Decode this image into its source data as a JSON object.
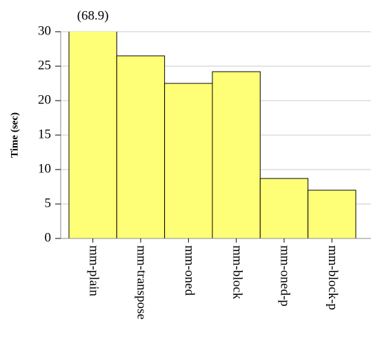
{
  "chart_data": {
    "type": "bar",
    "y_label": "Time (sec)",
    "categories": [
      "mm-plain",
      "mm-transpose",
      "mm-oned",
      "mm-block",
      "mm-oned-p",
      "mm-block-p"
    ],
    "values": [
      68.9,
      26.5,
      22.5,
      24.2,
      8.7,
      7.0
    ],
    "value_labels": [
      "(68.9)",
      null,
      null,
      null,
      null,
      null
    ],
    "color": "#ffff77",
    "ylim": [
      0,
      30
    ],
    "yticks": [
      0,
      5,
      10,
      15,
      20,
      25,
      30
    ],
    "grid": true
  }
}
